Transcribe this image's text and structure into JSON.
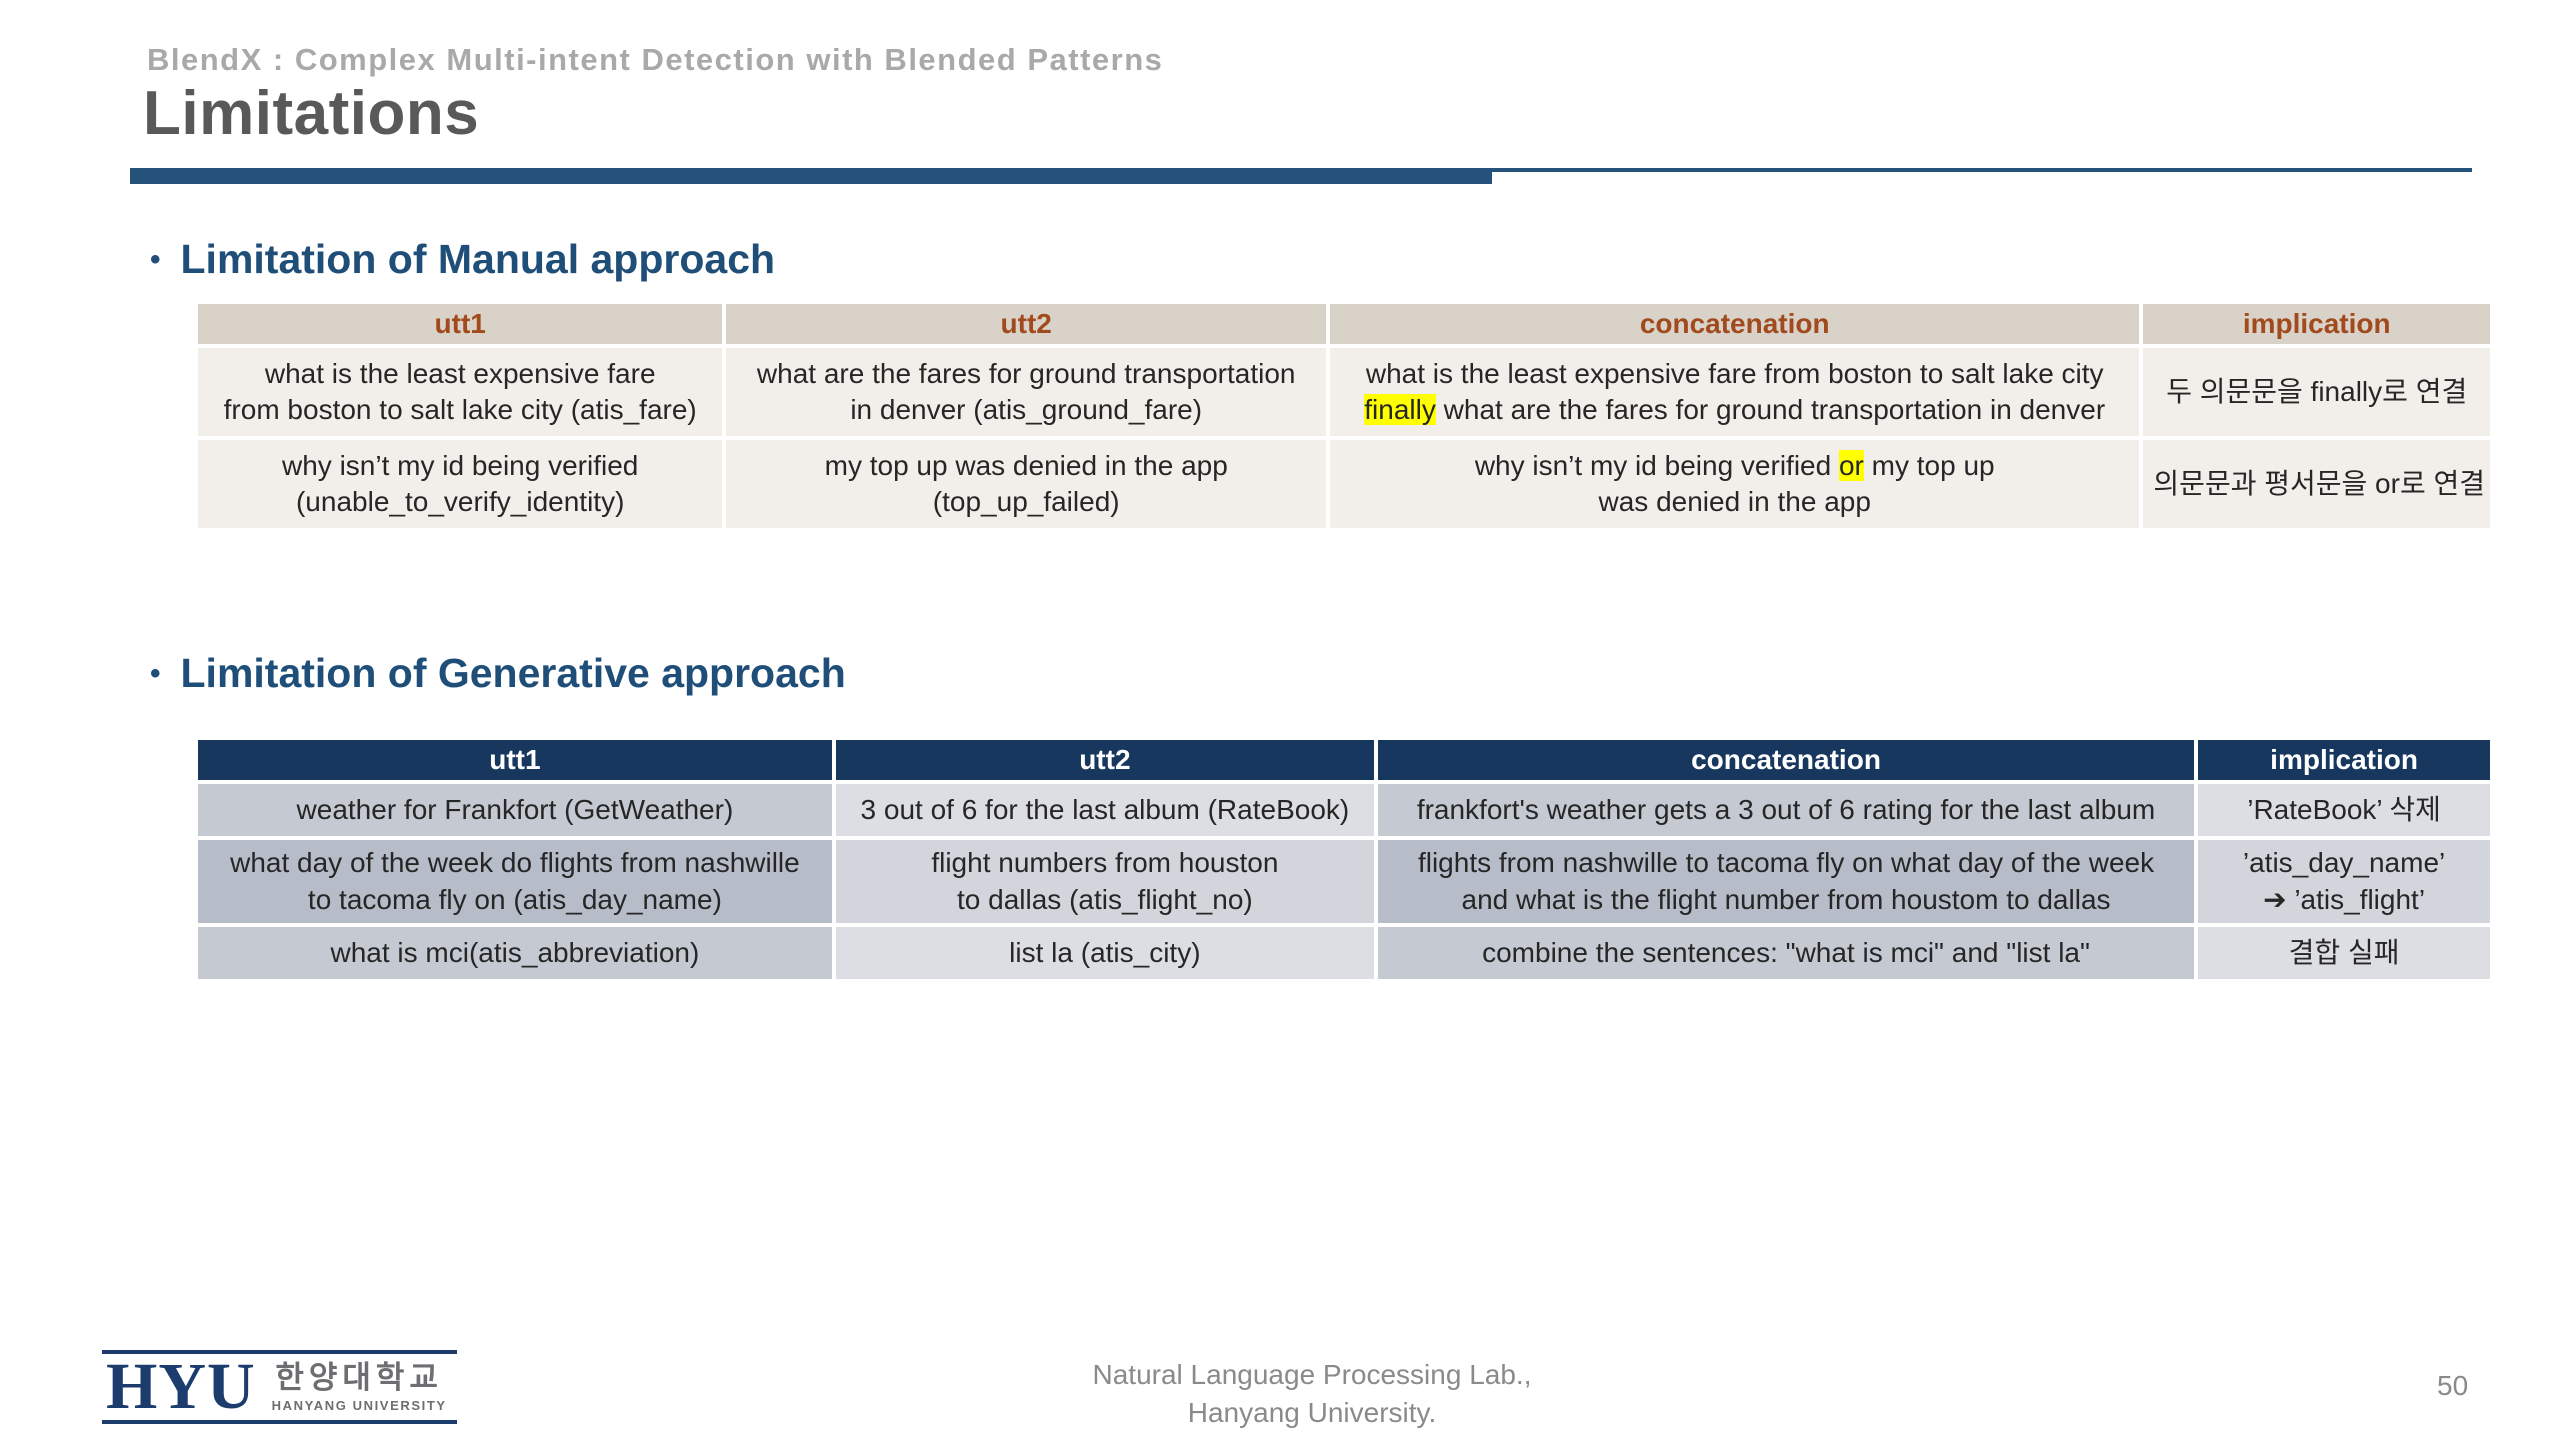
{
  "slide": {
    "kicker": "BlendX : Complex Multi-intent Detection with Blended Patterns",
    "title": "Limitations",
    "page_number": "50",
    "footer_credit_line1": "Natural Language Processing Lab.,",
    "footer_credit_line2": "Hanyang University.",
    "logo": {
      "acronym": "HYU",
      "korean_name": "한양대학교",
      "english_name": "HANYANG UNIVERSITY"
    }
  },
  "colors": {
    "accent_navy": "#24527b",
    "heading_navy": "#1f4e79",
    "title_gray": "#595959",
    "kicker_gray": "#a9a9a9",
    "manual_header_bg": "#d9d2c8",
    "manual_header_text": "#a14a1d",
    "manual_cell_bg": "#f2efea",
    "gen_header_bg": "#17375e",
    "gen_cell_a": "#c4c9d2",
    "gen_cell_b": "#dcdee3",
    "gen_cell_a_dark": "#b7bdc8",
    "gen_cell_b_dark": "#d2d5db",
    "highlight_yellow": "#ffff00",
    "logo_navy": "#1c3c6e",
    "footer_gray": "#8a8a8a"
  },
  "sections": [
    {
      "id": "manual",
      "heading": "Limitation of Manual approach",
      "columns": [
        "utt1",
        "utt2",
        "concatenation",
        "implication"
      ],
      "row_shades": [
        "light",
        "light"
      ],
      "rows": [
        [
          [
            [
              {
                "t": "what is the least expensive fare"
              }
            ],
            [
              {
                "t": "from boston to salt lake city (atis_fare)"
              }
            ]
          ],
          [
            [
              {
                "t": "what are the fares for ground transportation"
              }
            ],
            [
              {
                "t": "in denver (atis_ground_fare)"
              }
            ]
          ],
          [
            [
              {
                "t": "what is the least expensive fare from boston to salt lake city"
              }
            ],
            [
              {
                "t": "finally",
                "hl": true
              },
              {
                "t": " what are the fares for ground transportation in denver"
              }
            ]
          ],
          [
            [
              {
                "t": "두 의문문을 finally로 연결"
              }
            ]
          ]
        ],
        [
          [
            [
              {
                "t": "why isn’t my id being verified"
              }
            ],
            [
              {
                "t": "(unable_to_verify_identity)"
              }
            ]
          ],
          [
            [
              {
                "t": "my top up was denied in the app"
              }
            ],
            [
              {
                "t": "(top_up_failed)"
              }
            ]
          ],
          [
            [
              {
                "t": "why isn’t my id being verified "
              },
              {
                "t": "or",
                "hl": true
              },
              {
                "t": " my top up"
              }
            ],
            [
              {
                "t": "was denied in the app"
              }
            ]
          ],
          [
            [
              {
                "t": "의문문과 평서문을 or로 연결"
              }
            ]
          ]
        ]
      ]
    },
    {
      "id": "generative",
      "heading": "Limitation of Generative approach",
      "columns": [
        "utt1",
        "utt2",
        "concatenation",
        "implication"
      ],
      "row_shades": [
        "light",
        "dark",
        "light"
      ],
      "rows": [
        [
          [
            [
              {
                "t": "weather for Frankfort (GetWeather)"
              }
            ]
          ],
          [
            [
              {
                "t": "3 out of 6 for the last album (RateBook)"
              }
            ]
          ],
          [
            [
              {
                "t": "frankfort's weather gets a 3 out of 6 rating for the last album"
              }
            ]
          ],
          [
            [
              {
                "t": "’RateBook’ 삭제"
              }
            ]
          ]
        ],
        [
          [
            [
              {
                "t": "what day of the week do flights from nashwille"
              }
            ],
            [
              {
                "t": "to tacoma fly on (atis_day_name)"
              }
            ]
          ],
          [
            [
              {
                "t": "flight numbers from houston"
              }
            ],
            [
              {
                "t": "to dallas (atis_flight_no)"
              }
            ]
          ],
          [
            [
              {
                "t": "flights from nashwille to tacoma fly on what day of the week"
              }
            ],
            [
              {
                "t": "and what is the flight number from houstom to dallas"
              }
            ]
          ],
          [
            [
              {
                "t": "’atis_day_name’"
              }
            ],
            [
              {
                "t": "➔ ’atis_flight’"
              }
            ]
          ]
        ],
        [
          [
            [
              {
                "t": "what is mci(atis_abbreviation)"
              }
            ]
          ],
          [
            [
              {
                "t": "list la (atis_city)"
              }
            ]
          ],
          [
            [
              {
                "t": "combine the sentences: \"what is mci\" and \"list la\""
              }
            ]
          ],
          [
            [
              {
                "t": "결합 실패"
              }
            ]
          ]
        ]
      ]
    }
  ]
}
